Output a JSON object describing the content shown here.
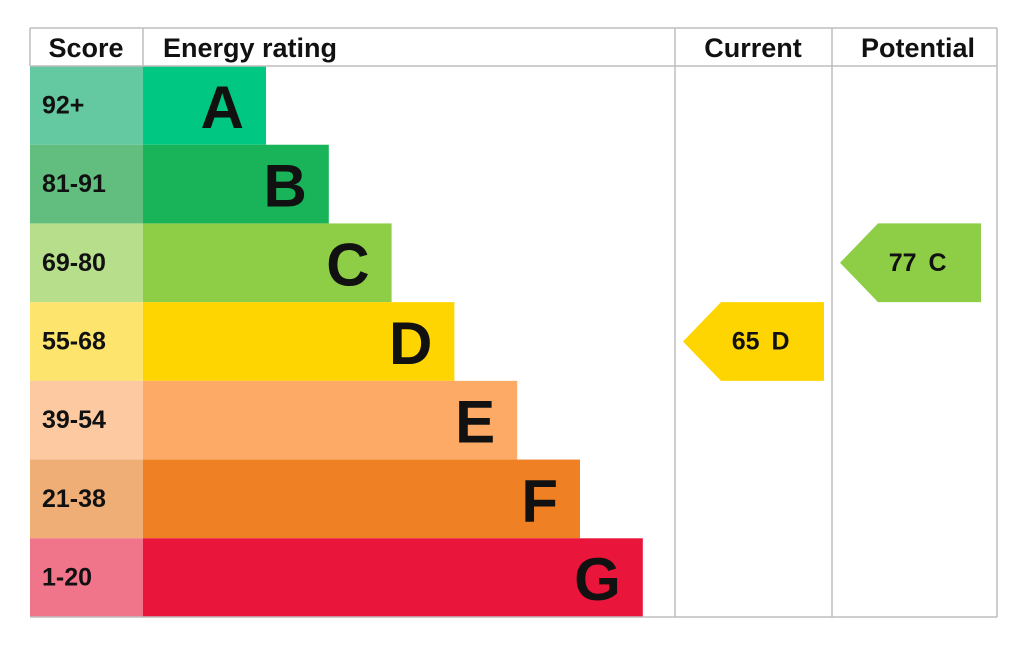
{
  "header": {
    "score": "Score",
    "rating": "Energy rating",
    "current": "Current",
    "potential": "Potential"
  },
  "bands": [
    {
      "score": "92+",
      "letter": "A",
      "color": "#00c781",
      "score_color": "#64c8a1"
    },
    {
      "score": "81-91",
      "letter": "B",
      "color": "#19b459",
      "score_color": "#62be7e"
    },
    {
      "score": "69-80",
      "letter": "C",
      "color": "#8dce46",
      "score_color": "#b6de8b"
    },
    {
      "score": "55-68",
      "letter": "D",
      "color": "#ffd500",
      "score_color": "#fde46c"
    },
    {
      "score": "39-54",
      "letter": "E",
      "color": "#fcaa65",
      "score_color": "#fcc9a1"
    },
    {
      "score": "21-38",
      "letter": "F",
      "color": "#ef8023",
      "score_color": "#f0ae77"
    },
    {
      "score": "1-20",
      "letter": "G",
      "color": "#e9153b",
      "score_color": "#f0758a"
    }
  ],
  "current": {
    "value": 65,
    "letter": "D"
  },
  "potential": {
    "value": 77,
    "letter": "C"
  }
}
